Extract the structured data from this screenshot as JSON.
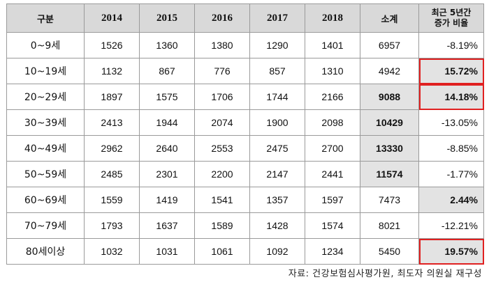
{
  "table": {
    "headers": [
      "구분",
      "2014",
      "2015",
      "2016",
      "2017",
      "2018",
      "소계",
      "최근 5년간",
      "증가 비율"
    ],
    "rows": [
      {
        "label": "0~9세",
        "v2014": "1526",
        "v2015": "1360",
        "v2016": "1380",
        "v2017": "1290",
        "v2018": "1401",
        "subtotal": "6957",
        "rate": "-8.19%"
      },
      {
        "label": "10~19세",
        "v2014": "1132",
        "v2015": "867",
        "v2016": "776",
        "v2017": "857",
        "v2018": "1310",
        "subtotal": "4942",
        "rate": "15.72%"
      },
      {
        "label": "20~29세",
        "v2014": "1897",
        "v2015": "1575",
        "v2016": "1706",
        "v2017": "1744",
        "v2018": "2166",
        "subtotal": "9088",
        "rate": "14.18%"
      },
      {
        "label": "30~39세",
        "v2014": "2413",
        "v2015": "1944",
        "v2016": "2074",
        "v2017": "1900",
        "v2018": "2098",
        "subtotal": "10429",
        "rate": "-13.05%"
      },
      {
        "label": "40~49세",
        "v2014": "2962",
        "v2015": "2640",
        "v2016": "2553",
        "v2017": "2475",
        "v2018": "2700",
        "subtotal": "13330",
        "rate": "-8.85%"
      },
      {
        "label": "50~59세",
        "v2014": "2485",
        "v2015": "2301",
        "v2016": "2200",
        "v2017": "2147",
        "v2018": "2441",
        "subtotal": "11574",
        "rate": "-1.77%"
      },
      {
        "label": "60~69세",
        "v2014": "1559",
        "v2015": "1419",
        "v2016": "1541",
        "v2017": "1357",
        "v2018": "1597",
        "subtotal": "7473",
        "rate": "2.44%"
      },
      {
        "label": "70~79세",
        "v2014": "1793",
        "v2015": "1637",
        "v2016": "1589",
        "v2017": "1428",
        "v2018": "1574",
        "subtotal": "8021",
        "rate": "-12.21%"
      },
      {
        "label": "80세이상",
        "v2014": "1032",
        "v2015": "1031",
        "v2016": "1061",
        "v2017": "1092",
        "v2018": "1234",
        "subtotal": "5450",
        "rate": "19.57%"
      }
    ]
  },
  "source": "자료: 건강보험심사평가원, 최도자 의원실 재구성"
}
